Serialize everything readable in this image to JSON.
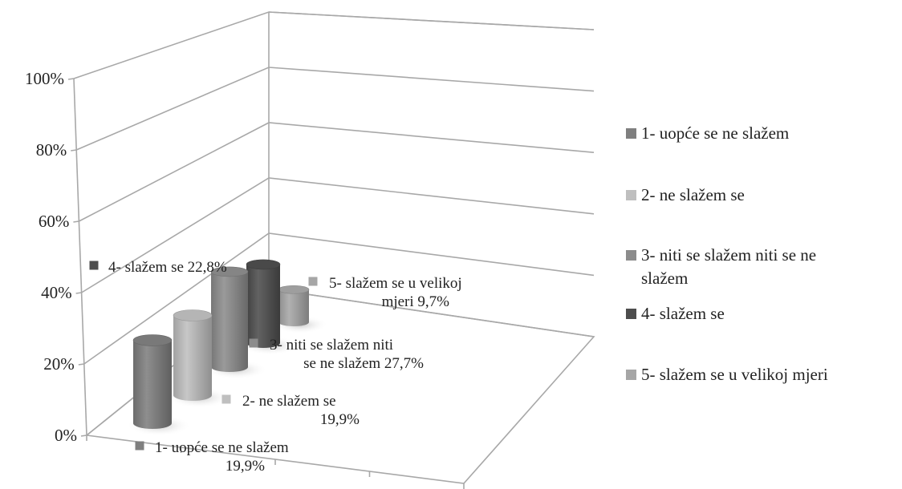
{
  "chart_data": {
    "type": "bar",
    "style": "3d-cylinder",
    "categories": [
      "1- uopće se ne slažem",
      "2- ne slažem se",
      "3- niti se slažem niti se ne slažem",
      "4- slažem se",
      "5- slažem se u velikoj mjeri"
    ],
    "values": [
      0.199,
      0.199,
      0.277,
      0.228,
      0.097
    ],
    "colors": [
      "#7f7f7f",
      "#bfbfbf",
      "#8c8c8c",
      "#4d4d4d",
      "#a6a6a6"
    ],
    "ylim": [
      0,
      1
    ],
    "yticks": [
      "0%",
      "20%",
      "40%",
      "60%",
      "80%",
      "100%"
    ],
    "grid": true,
    "legend_position": "right",
    "data_labels": [
      {
        "lines": [
          "1- uopće se ne slažem",
          "19,9%"
        ]
      },
      {
        "lines": [
          "2- ne slažem se",
          "19,9%"
        ]
      },
      {
        "lines": [
          "3- niti se slažem niti",
          "se ne slažem 27,7%"
        ]
      },
      {
        "lines": [
          "4- slažem se 22,8%"
        ]
      },
      {
        "lines": [
          "5- slažem se u velikoj",
          "mjeri 9,7%"
        ]
      }
    ],
    "legend": [
      {
        "lines": [
          "1- uopće se ne slažem"
        ]
      },
      {
        "lines": [
          "2- ne slažem se"
        ]
      },
      {
        "lines": [
          "3- niti se slažem niti se ne",
          "slažem"
        ]
      },
      {
        "lines": [
          "4- slažem se"
        ]
      },
      {
        "lines": [
          "5- slažem se u velikoj mjeri"
        ]
      }
    ]
  }
}
